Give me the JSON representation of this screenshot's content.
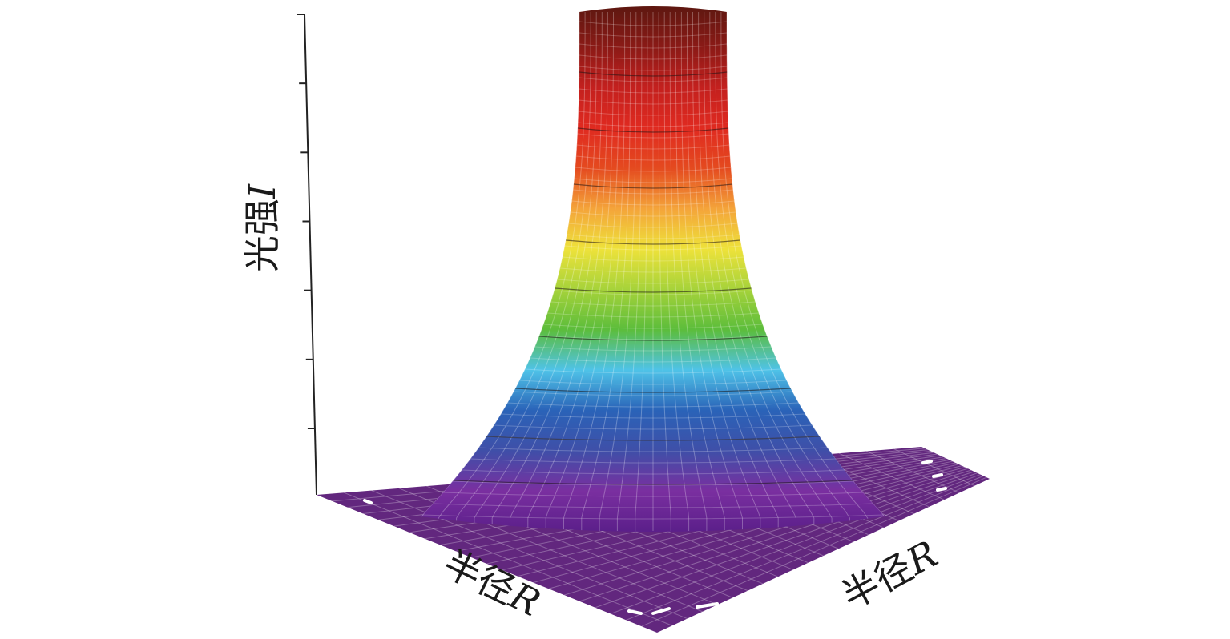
{
  "chart_data": {
    "type": "surface",
    "title": "",
    "zlabel": {
      "text": "光强",
      "symbol": "I"
    },
    "xlabel": {
      "text": "半径",
      "symbol": "R"
    },
    "ylabel": {
      "text": "半径",
      "symbol": "R"
    },
    "z_tick_count": 7,
    "profile": "flat-top",
    "colormap": [
      "#5b1f8a",
      "#7a2fa0",
      "#3f4fa8",
      "#2a63b8",
      "#4fc3e8",
      "#5cbd3b",
      "#a7d33a",
      "#eee23a",
      "#f4a43a",
      "#e44a1f",
      "#e02a20",
      "#c3201e",
      "#8a1a16",
      "#5e1710"
    ],
    "base_color": "#62277e",
    "grid": true,
    "legend": "none"
  }
}
